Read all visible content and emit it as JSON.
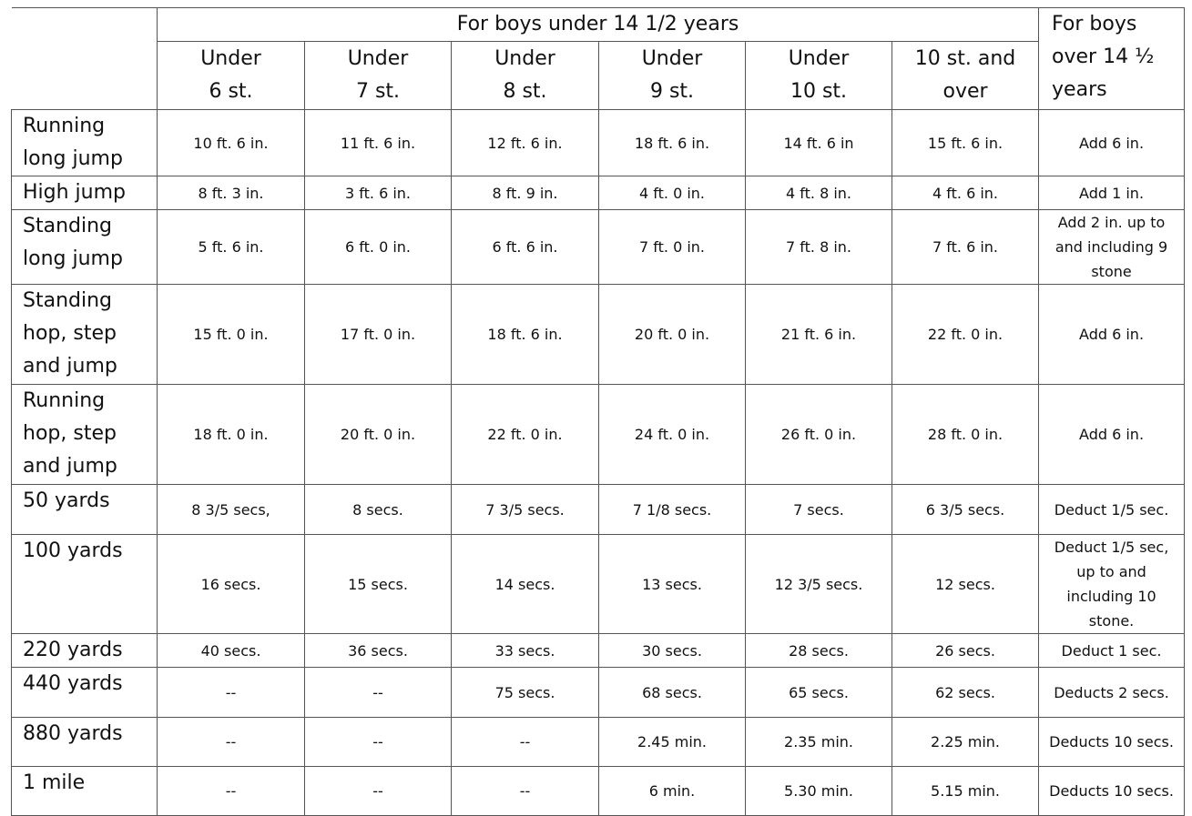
{
  "table": {
    "group_title": "For boys under 14 1/2 years",
    "over_title": "For boys over 14 ½ years",
    "columns": [
      [
        "Under",
        "6 st."
      ],
      [
        "Under",
        "7 st."
      ],
      [
        "Under",
        "8 st."
      ],
      [
        "Under",
        "9 st."
      ],
      [
        "Under",
        "10 st."
      ],
      [
        "10 st. and",
        "over"
      ]
    ],
    "rows": [
      [
        "Running long jump",
        "10 ft. 6 in.",
        "11 ft. 6 in.",
        "12 ft. 6 in.",
        "18 ft. 6 in.",
        "14 ft. 6 in",
        "15 ft. 6 in.",
        "Add 6 in."
      ],
      [
        "High jump",
        "8 ft. 3 in.",
        "3 ft. 6 in.",
        "8 ft. 9 in.",
        "4 ft. 0 in.",
        "4 ft. 8 in.",
        "4 ft. 6 in.",
        "Add 1 in."
      ],
      [
        "Standing long jump",
        "5 ft. 6 in.",
        "6 ft. 0 in.",
        "6 ft. 6 in.",
        "7 ft. 0 in.",
        "7 ft. 8 in.",
        "7 ft. 6 in.",
        "Add 2 in. up to and including 9 stone"
      ],
      [
        "Standing hop, step and jump",
        "15 ft. 0 in.",
        "17 ft. 0 in.",
        "18 ft. 6 in.",
        "20 ft. 0 in.",
        "21 ft. 6 in.",
        "22 ft. 0 in.",
        "Add 6 in."
      ],
      [
        "Running hop, step and jump",
        "18 ft. 0 in.",
        "20 ft. 0 in.",
        "22 ft. 0 in.",
        "24 ft. 0 in.",
        "26 ft. 0 in.",
        "28 ft. 0 in.",
        "Add 6 in."
      ],
      [
        "50 yards",
        "8 3/5 secs,",
        "8 secs.",
        "7 3/5 secs.",
        "7 1/8 secs.",
        "7 secs.",
        "6 3/5 secs.",
        "Deduct 1/5 sec."
      ],
      [
        "100 yards",
        "16 secs.",
        "15 secs.",
        "14 secs.",
        "13 secs.",
        "12 3/5 secs.",
        "12 secs.",
        "Deduct 1/5 sec, up to and including 10 stone."
      ],
      [
        "220 yards",
        "40 secs.",
        "36 secs.",
        "33 secs.",
        "30 secs.",
        "28 secs.",
        "26 secs.",
        "Deduct 1 sec."
      ],
      [
        "440 yards",
        "--",
        "--",
        "75 secs.",
        "68 secs.",
        "65 secs.",
        "62 secs.",
        "Deducts 2 secs."
      ],
      [
        "880 yards",
        "--",
        "--",
        "--",
        "2.45 min.",
        "2.35 min.",
        "2.25 min.",
        "Deducts 10 secs."
      ],
      [
        "1 mile",
        "--",
        "--",
        "--",
        "6 min.",
        "5.30 min.",
        "5.15 min.",
        "Deducts 10 secs."
      ]
    ]
  }
}
